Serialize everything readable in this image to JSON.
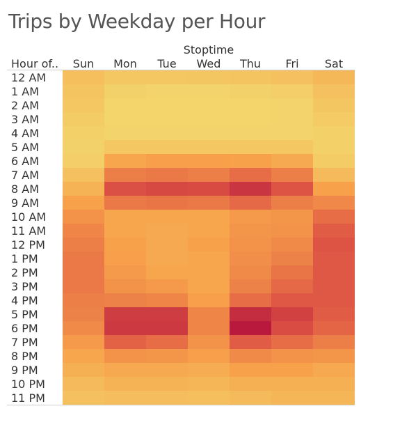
{
  "chart_data": {
    "type": "heatmap",
    "title": "Trips by Weekday per Hour",
    "column_group_label": "Stoptime",
    "row_header": "Hour of..",
    "columns": [
      "Sun",
      "Mon",
      "Tue",
      "Wed",
      "Thu",
      "Fri",
      "Sat"
    ],
    "rows": [
      "12 AM",
      "1 AM",
      "2 AM",
      "3 AM",
      "4 AM",
      "5 AM",
      "6 AM",
      "7 AM",
      "8 AM",
      "9 AM",
      "10 AM",
      "11 AM",
      "12 PM",
      "1 PM",
      "2 PM",
      "3 PM",
      "4 PM",
      "5 PM",
      "6 PM",
      "7 PM",
      "8 PM",
      "9 PM",
      "10 PM",
      "11 PM"
    ],
    "color_scale": [
      "#f3d86e",
      "#f7a04a",
      "#e15b45",
      "#b8193c"
    ],
    "values": [
      [
        0.15,
        0.1,
        0.1,
        0.11,
        0.12,
        0.14,
        0.19
      ],
      [
        0.12,
        0.04,
        0.03,
        0.03,
        0.04,
        0.06,
        0.14
      ],
      [
        0.1,
        0.02,
        0.02,
        0.02,
        0.02,
        0.03,
        0.11
      ],
      [
        0.07,
        0.02,
        0.02,
        0.02,
        0.02,
        0.03,
        0.08
      ],
      [
        0.05,
        0.03,
        0.03,
        0.03,
        0.03,
        0.03,
        0.05
      ],
      [
        0.04,
        0.1,
        0.1,
        0.1,
        0.1,
        0.1,
        0.05
      ],
      [
        0.06,
        0.3,
        0.34,
        0.34,
        0.32,
        0.28,
        0.07
      ],
      [
        0.14,
        0.5,
        0.52,
        0.5,
        0.58,
        0.5,
        0.18
      ],
      [
        0.22,
        0.72,
        0.76,
        0.75,
        0.86,
        0.7,
        0.32
      ],
      [
        0.32,
        0.52,
        0.54,
        0.52,
        0.6,
        0.5,
        0.45
      ],
      [
        0.4,
        0.3,
        0.3,
        0.3,
        0.36,
        0.38,
        0.58
      ],
      [
        0.46,
        0.3,
        0.28,
        0.3,
        0.38,
        0.4,
        0.66
      ],
      [
        0.5,
        0.32,
        0.28,
        0.32,
        0.4,
        0.44,
        0.7
      ],
      [
        0.52,
        0.34,
        0.28,
        0.3,
        0.42,
        0.48,
        0.68
      ],
      [
        0.52,
        0.36,
        0.3,
        0.3,
        0.44,
        0.54,
        0.68
      ],
      [
        0.52,
        0.4,
        0.36,
        0.3,
        0.48,
        0.6,
        0.68
      ],
      [
        0.5,
        0.48,
        0.46,
        0.34,
        0.58,
        0.68,
        0.68
      ],
      [
        0.48,
        0.82,
        0.82,
        0.46,
        0.9,
        0.8,
        0.66
      ],
      [
        0.44,
        0.84,
        0.84,
        0.46,
        1.0,
        0.74,
        0.62
      ],
      [
        0.36,
        0.64,
        0.58,
        0.4,
        0.66,
        0.58,
        0.5
      ],
      [
        0.3,
        0.4,
        0.38,
        0.34,
        0.44,
        0.4,
        0.38
      ],
      [
        0.24,
        0.28,
        0.28,
        0.26,
        0.32,
        0.32,
        0.28
      ],
      [
        0.18,
        0.22,
        0.22,
        0.2,
        0.24,
        0.24,
        0.24
      ],
      [
        0.14,
        0.16,
        0.16,
        0.15,
        0.18,
        0.2,
        0.2
      ]
    ]
  }
}
